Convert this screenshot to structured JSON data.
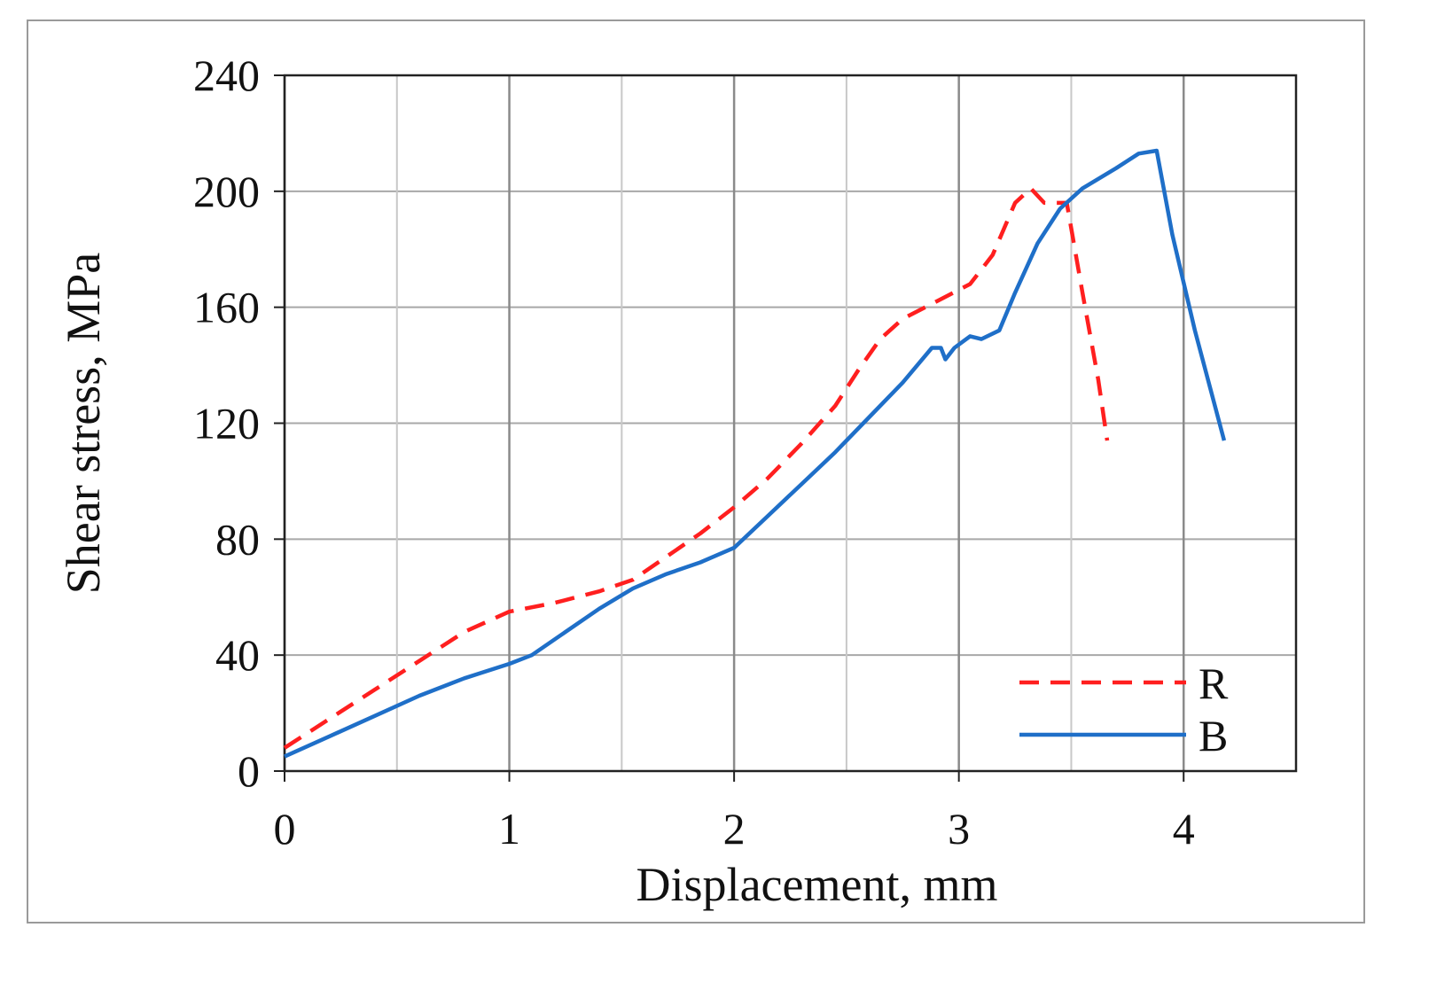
{
  "chart_data": {
    "type": "line",
    "title": "",
    "xlabel": "Displacement, mm",
    "ylabel": "Shear stress, MPa",
    "xlim": [
      0,
      4.5
    ],
    "ylim": [
      0,
      240
    ],
    "x_ticks": [
      0,
      1,
      2,
      3,
      4
    ],
    "y_ticks": [
      0,
      40,
      80,
      120,
      160,
      200,
      240
    ],
    "x_tick_labels": [
      "0",
      "1",
      "2",
      "3",
      "4"
    ],
    "y_tick_labels": [
      "0",
      "40",
      "80",
      "120",
      "160",
      "200",
      "240"
    ],
    "x_minor_grid": [
      0.5,
      1.5,
      2.5,
      3.5
    ],
    "grid": true,
    "legend_position": "bottom-right",
    "series": [
      {
        "name": "R",
        "color": "#ff1f1f",
        "dash": "dashed",
        "points": [
          [
            0,
            8
          ],
          [
            0.2,
            18
          ],
          [
            0.4,
            28
          ],
          [
            0.6,
            38
          ],
          [
            0.8,
            48
          ],
          [
            1.0,
            55
          ],
          [
            1.2,
            58
          ],
          [
            1.4,
            62
          ],
          [
            1.55,
            66
          ],
          [
            1.7,
            74
          ],
          [
            1.85,
            82
          ],
          [
            2.0,
            91
          ],
          [
            2.15,
            101
          ],
          [
            2.3,
            113
          ],
          [
            2.45,
            126
          ],
          [
            2.55,
            138
          ],
          [
            2.65,
            149
          ],
          [
            2.75,
            156
          ],
          [
            2.85,
            160
          ],
          [
            2.95,
            164
          ],
          [
            3.05,
            168
          ],
          [
            3.15,
            178
          ],
          [
            3.25,
            196
          ],
          [
            3.32,
            201
          ],
          [
            3.38,
            196
          ],
          [
            3.45,
            196
          ],
          [
            3.48,
            196
          ],
          [
            3.55,
            165
          ],
          [
            3.62,
            135
          ],
          [
            3.66,
            114
          ]
        ]
      },
      {
        "name": "B",
        "color": "#1f6fc8",
        "dash": "solid",
        "points": [
          [
            0,
            5
          ],
          [
            0.2,
            12
          ],
          [
            0.4,
            19
          ],
          [
            0.6,
            26
          ],
          [
            0.8,
            32
          ],
          [
            1.0,
            37
          ],
          [
            1.1,
            40
          ],
          [
            1.25,
            48
          ],
          [
            1.4,
            56
          ],
          [
            1.55,
            63
          ],
          [
            1.7,
            68
          ],
          [
            1.85,
            72
          ],
          [
            2.0,
            77
          ],
          [
            2.15,
            88
          ],
          [
            2.3,
            99
          ],
          [
            2.45,
            110
          ],
          [
            2.6,
            122
          ],
          [
            2.75,
            134
          ],
          [
            2.88,
            146
          ],
          [
            2.92,
            146
          ],
          [
            2.94,
            142
          ],
          [
            2.98,
            146
          ],
          [
            3.05,
            150
          ],
          [
            3.1,
            149
          ],
          [
            3.18,
            152
          ],
          [
            3.25,
            165
          ],
          [
            3.35,
            182
          ],
          [
            3.45,
            194
          ],
          [
            3.55,
            201
          ],
          [
            3.7,
            208
          ],
          [
            3.8,
            213
          ],
          [
            3.88,
            214
          ],
          [
            3.95,
            185
          ],
          [
            4.05,
            152
          ],
          [
            4.18,
            114
          ]
        ]
      }
    ]
  }
}
